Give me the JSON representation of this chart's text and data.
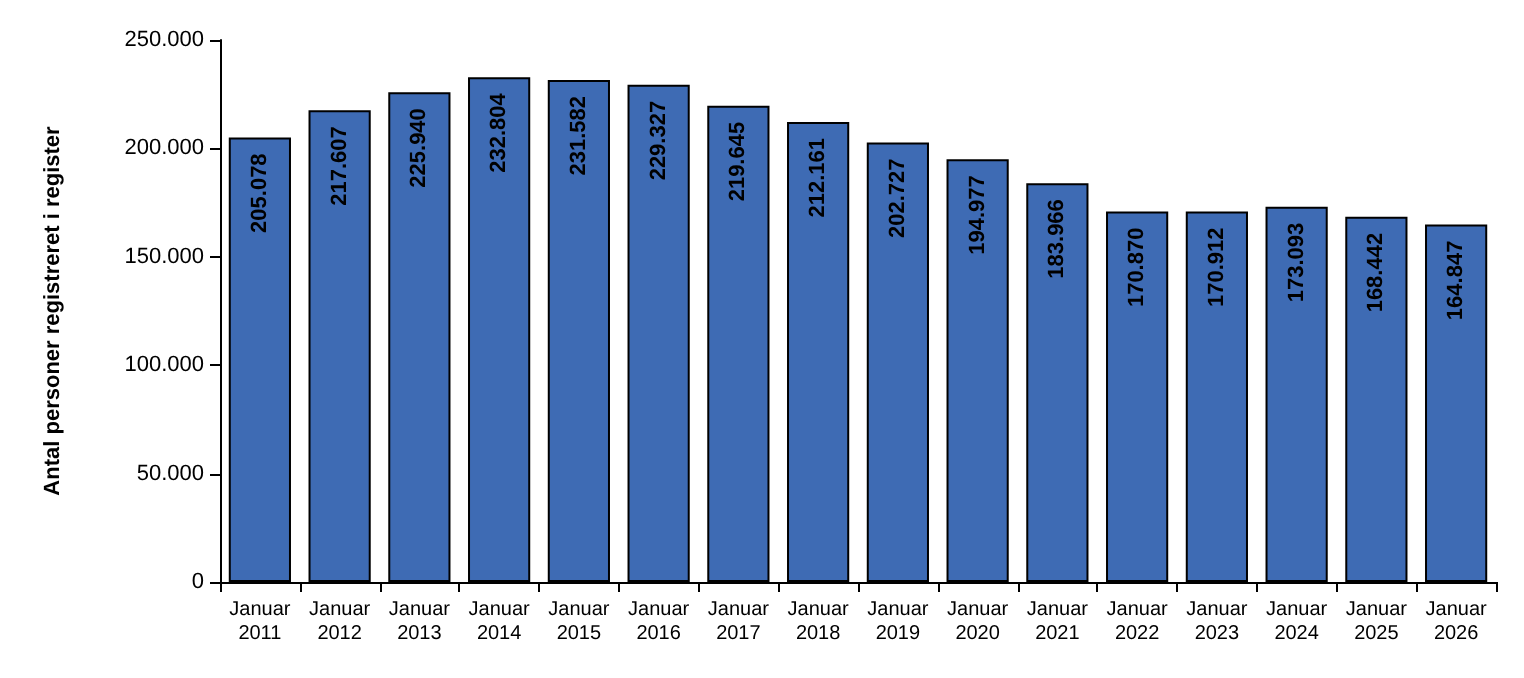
{
  "chart_data": {
    "type": "bar",
    "ylabel": "Antal personer registreret i register",
    "categories": [
      "Januar\n2011",
      "Januar\n2012",
      "Januar\n2013",
      "Januar\n2014",
      "Januar\n2015",
      "Januar\n2016",
      "Januar\n2017",
      "Januar\n2018",
      "Januar\n2019",
      "Januar\n2020",
      "Januar\n2021",
      "Januar\n2022",
      "Januar\n2023",
      "Januar\n2024",
      "Januar\n2025",
      "Januar\n2026"
    ],
    "values": [
      205078,
      217607,
      225940,
      232804,
      231582,
      229327,
      219645,
      212161,
      202727,
      194977,
      183966,
      170870,
      170912,
      173093,
      168442,
      164847
    ],
    "value_labels": [
      "205.078",
      "217.607",
      "225.940",
      "232.804",
      "231.582",
      "229.327",
      "219.645",
      "212.161",
      "202.727",
      "194.977",
      "183.966",
      "170.870",
      "170.912",
      "173.093",
      "168.442",
      "164.847"
    ],
    "color": "#3e6bb4",
    "ylim": [
      0,
      250000
    ],
    "yticks": [
      0,
      {
        "value": 50000,
        "label": "50.000"
      },
      {
        "value": 100000,
        "label": "100.000"
      },
      {
        "value": 150000,
        "label": "150.000"
      },
      {
        "value": 200000,
        "label": "200.000"
      },
      {
        "value": 250000,
        "label": "250.000"
      }
    ],
    "grid": false
  }
}
